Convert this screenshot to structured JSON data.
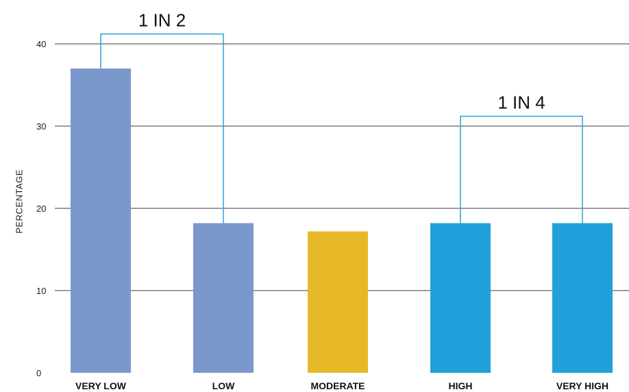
{
  "chart_data": {
    "type": "bar",
    "title": "",
    "xlabel": "",
    "ylabel": "PERCENTAGE",
    "ylim": [
      0,
      40
    ],
    "yticks": [
      0,
      10,
      20,
      30,
      40
    ],
    "grid": true,
    "categories": [
      "VERY LOW",
      "LOW",
      "MODERATE",
      "HIGH",
      "VERY HIGH"
    ],
    "values": [
      37,
      18.2,
      17.2,
      18.2,
      18.2
    ],
    "colors": [
      "#7b98cc",
      "#7b98cc",
      "#e7b928",
      "#21a0db",
      "#21a0db"
    ],
    "annotations": [
      {
        "text": "1 IN 2",
        "from_category": 0,
        "to_category": 1,
        "level": 41.2
      },
      {
        "text": "1 IN 4",
        "from_category": 3,
        "to_category": 4,
        "level": 31.2
      }
    ],
    "annotation_line_color": "#2aa3dc",
    "gridline_color": "#3a3a3a"
  }
}
